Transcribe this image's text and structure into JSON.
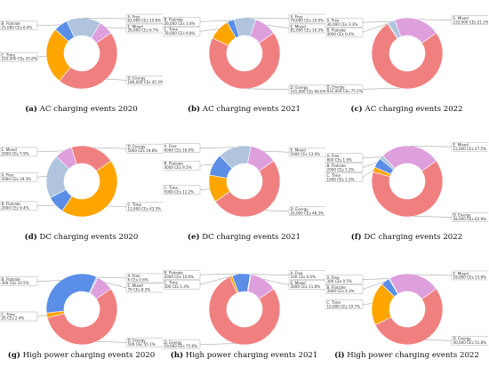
{
  "category_colors": {
    "A. Free": "#b0c4de",
    "B. Flatrate": "#5b8ee6",
    "C. Time": "#ffa500",
    "D. Energy": "#f08080",
    "E. Mixed": "#dda0dd"
  },
  "chart_data": [
    {
      "type": "pie",
      "donut": true,
      "letter": "(a)",
      "title": "AC charging events 2020",
      "slices": [
        {
          "name": "E. Mixed",
          "value": 26000,
          "label": "26,000 CEs 6.7%"
        },
        {
          "name": "A. Free",
          "value": 62000,
          "label": "62,000 CEs 15.8%"
        },
        {
          "name": "B. Flatrate",
          "value": 25000,
          "label": "25,000 CEs 6.4%"
        },
        {
          "name": "C. Time",
          "value": 102000,
          "label": "102,000 CEs 25.8%"
        },
        {
          "name": "D. Energy",
          "value": 180000,
          "label": "180,000 CEs 45.3%"
        }
      ]
    },
    {
      "type": "pie",
      "donut": true,
      "letter": "(b)",
      "title": "AC charging events 2021",
      "slices": [
        {
          "name": "E. Mixed",
          "value": 81000,
          "label": "81,000 CEs 10.3%"
        },
        {
          "name": "A. Free",
          "value": 79000,
          "label": "79,000 CEs 10.0%"
        },
        {
          "name": "B. Flatrate",
          "value": 26000,
          "label": "26,000 CEs 3.4%"
        },
        {
          "name": "C. Time",
          "value": 78000,
          "label": "78,000 CEs 9.8%"
        },
        {
          "name": "D. Energy",
          "value": 531000,
          "label": "531,000 CEs 66.6%"
        }
      ]
    },
    {
      "type": "pie",
      "donut": true,
      "letter": "(c)",
      "title": "AC charging events 2022",
      "slices": [
        {
          "name": "E. Mixed",
          "value": 232000,
          "label": "232,000 CEs 21.3%"
        },
        {
          "name": "A. Free",
          "value": 36000,
          "label": "36,000 CEs 3.3%"
        },
        {
          "name": "B. Flatrate",
          "value": 4000,
          "label": "4000 CEs 0.4%"
        },
        {
          "name": "D. Energy",
          "value": 831000,
          "label": "831,000 CEs 75.2%"
        }
      ]
    },
    {
      "type": "pie",
      "donut": true,
      "letter": "(d)",
      "title": "DC charging events 2020",
      "slices": [
        {
          "name": "D. Energy",
          "value": 5000,
          "label": "5000 CEs 19.8%"
        },
        {
          "name": "E. Mixed",
          "value": 2000,
          "label": "2000 CEs 7.9%"
        },
        {
          "name": "A. Free",
          "value": 5000,
          "label": "5000 CEs 19.3%"
        },
        {
          "name": "B. Flatrate",
          "value": 2000,
          "label": "2000 CEs 9.4%"
        },
        {
          "name": "C. Time",
          "value": 11000,
          "label": "11,000 CEs 43.5%"
        }
      ]
    },
    {
      "type": "pie",
      "donut": true,
      "letter": "(e)",
      "title": "DC charging events 2021",
      "slices": [
        {
          "name": "E. Mixed",
          "value": 5000,
          "label": "5000 CEs 13.0%"
        },
        {
          "name": "A. Free",
          "value": 6000,
          "label": "6000 CEs 16.0%"
        },
        {
          "name": "B. Flatrate",
          "value": 4000,
          "label": "4000 CEs 9.5%"
        },
        {
          "name": "C. Time",
          "value": 5000,
          "label": "5000 CEs 11.2%"
        },
        {
          "name": "D. Energy",
          "value": 20000,
          "label": "20,000 CEs 48.3%"
        }
      ]
    },
    {
      "type": "pie",
      "donut": true,
      "letter": "(f)",
      "title": "DC charging events 2022",
      "slices": [
        {
          "name": "E. Mixed",
          "value": 12000,
          "label": "12,000 CEs 27.5%"
        },
        {
          "name": "A. Free",
          "value": 800,
          "label": "800 CEs 1.9%"
        },
        {
          "name": "B. Flatrate",
          "value": 2000,
          "label": "2000 CEs 5.3%"
        },
        {
          "name": "C. Time",
          "value": 1000,
          "label": "1000 CEs 2.3%"
        },
        {
          "name": "D. Energy",
          "value": 28000,
          "label": "28,000 CEs 62.9%"
        }
      ]
    },
    {
      "type": "pie",
      "donut": true,
      "letter": "(g)",
      "title": "High power charging events 2020",
      "slices": [
        {
          "name": "E. Mixed",
          "value": 70,
          "label": "70 CEs 8.3%"
        },
        {
          "name": "A. Free",
          "value": 6,
          "label": "6 CEs 0.6%"
        },
        {
          "name": "B. Flatrate",
          "value": 300,
          "label": "300 CEs 33.5%"
        },
        {
          "name": "C. Time",
          "value": 20,
          "label": "20 CEs 2.4%"
        },
        {
          "name": "D. Energy",
          "value": 500,
          "label": "500 CEs 55.1%"
        }
      ]
    },
    {
      "type": "pie",
      "donut": true,
      "letter": "(h)",
      "title": "High power charging events 2021",
      "slices": [
        {
          "name": "E. Mixed",
          "value": 3000,
          "label": "3000 CEs 11.8%"
        },
        {
          "name": "A. Free",
          "value": 100,
          "label": "100 CEs 0.6%"
        },
        {
          "name": "B. Flatrate",
          "value": 2000,
          "label": "2000 CEs 10.6%"
        },
        {
          "name": "C. Time",
          "value": 300,
          "label": "300 CEs 1.4%"
        },
        {
          "name": "D. Energy",
          "value": 19000,
          "label": "19,000 CEs 75.6%"
        }
      ]
    },
    {
      "type": "pie",
      "donut": true,
      "letter": "(i)",
      "title": "High power charging events 2022",
      "slices": [
        {
          "name": "E. Mixed",
          "value": 18000,
          "label": "18,000 CEs 23.8%"
        },
        {
          "name": "A. Free",
          "value": 300,
          "label": "300 CEs 0.5%"
        },
        {
          "name": "B. Flatrate",
          "value": 3000,
          "label": "3000 CEs 4.3%"
        },
        {
          "name": "C. Time",
          "value": 15000,
          "label": "15,000 CEs 19.7%"
        },
        {
          "name": "D. Energy",
          "value": 40000,
          "label": "40,000 CEs 51.8%"
        }
      ]
    }
  ]
}
